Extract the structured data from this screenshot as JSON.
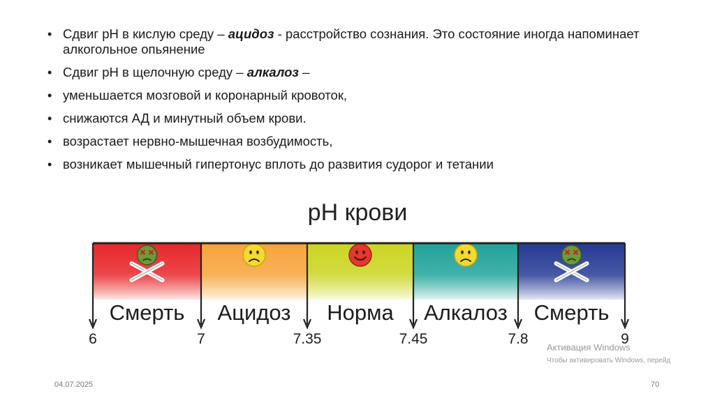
{
  "bullets": [
    {
      "before": "Сдвиг рН в кислую среду – ",
      "em": "ацидоз",
      "after": " - расстройство сознания. Это состояние иногда напоминает алкогольное опьянение"
    },
    {
      "before": "Сдвиг рН в щелочную среду – ",
      "em": "алкалоз",
      "after": " –"
    },
    {
      "before": " уменьшается мозговой и коронарный кровоток,",
      "em": "",
      "after": ""
    },
    {
      "before": "снижаются АД и минутный объем крови.",
      "em": "",
      "after": ""
    },
    {
      "before": " возрастает нервно-мышечная возбудимость,",
      "em": "",
      "after": ""
    },
    {
      "before": "возникает мышечный гипертонус вплоть до развития судорог и тетании",
      "em": "",
      "after": ""
    }
  ],
  "chart": {
    "title": "pH крови",
    "segments": [
      {
        "label": "Смерть",
        "icon": "skull-crossbones-icon",
        "color_top": "#e8262a",
        "color_bottom": "#fde8e4"
      },
      {
        "label": "Ацидоз",
        "icon": "sad-face-icon",
        "color_top": "#f7a33a",
        "color_bottom": "#fff3de"
      },
      {
        "label": "Норма",
        "icon": "happy-face-icon",
        "color_top": "#cbd51f",
        "color_bottom": "#f8fadc"
      },
      {
        "label": "Алкалоз",
        "icon": "sad-face-icon",
        "color_top": "#1fa39a",
        "color_bottom": "#e2f4f2"
      },
      {
        "label": "Смерть",
        "icon": "skull-crossbones-icon",
        "color_top": "#253a94",
        "color_bottom": "#e4e7f5"
      }
    ],
    "ticks": [
      "6",
      "7",
      "7.35",
      "7.45",
      "7.8",
      "9"
    ]
  },
  "watermark": {
    "line1": "Активация Windows",
    "line2": "Чтобы активировать Windows, перейд"
  },
  "footer": {
    "date": "04.07.2025",
    "page": "70"
  }
}
